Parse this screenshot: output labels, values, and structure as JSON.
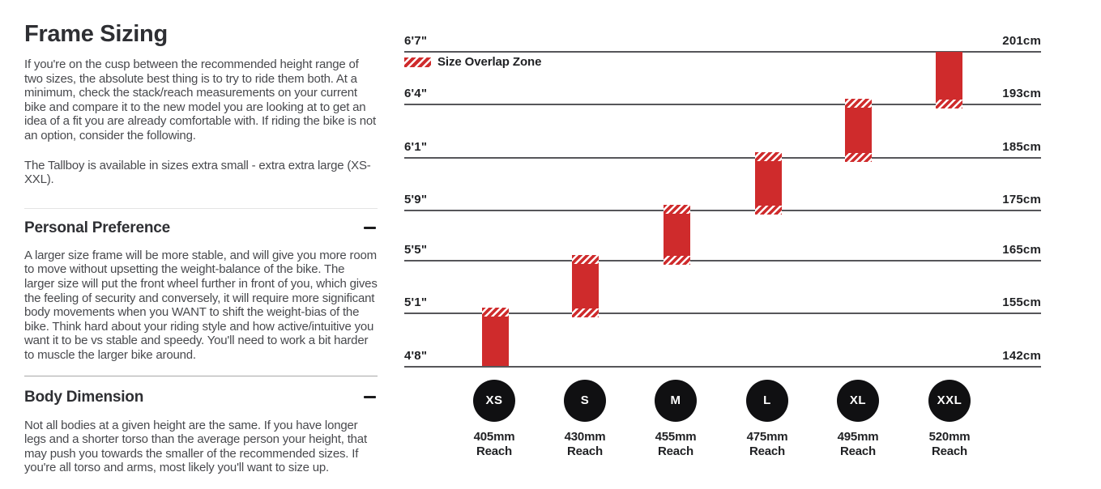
{
  "colors": {
    "red": "#cf2b2c",
    "circle_black": "#101012",
    "line_gray": "#56565a"
  },
  "header": {
    "title": "Frame Sizing"
  },
  "intro": {
    "p1": "If you're on the cusp between the recommended height range of two sizes, the absolute best thing is to try to ride them both. At a minimum, check the stack/reach measurements on your current bike and compare it to the new model you are looking at to get an idea of a fit you are already comfortable with. If riding the bike is not an option, consider the following.",
    "p2": "The Tallboy is available in sizes extra small - extra extra large (XS-XXL)."
  },
  "sections": [
    {
      "title": "Personal Preference",
      "toggle_state": "expanded",
      "body": "A larger size frame will be more stable, and will give you more room to move without upsetting the weight-balance of the bike. The larger size will put the front wheel further in front of you, which gives the feeling of security and conversely, it will require more significant body movements when you WANT to shift the weight-bias of the bike. Think hard about your riding style and how active/intuitive you want it to be vs stable and speedy. You'll need to work a bit harder to muscle the larger bike around."
    },
    {
      "title": "Body Dimension",
      "toggle_state": "expanded",
      "body": "Not all bodies at a given height are the same. If you have longer legs and a shorter torso than the average person your height, that may push you towards the smaller of the recommended sizes. If you're all torso and arms, most likely you'll want to size up."
    }
  ],
  "chart_data": {
    "type": "bar",
    "subtype": "vertical-range-size-chart",
    "title": "Frame Sizing",
    "legend": "Size Overlap Zone",
    "grid": "horizontal-lines",
    "height_levels": [
      {
        "ft": "6'7\"",
        "cm": "201cm"
      },
      {
        "ft": "6'4\"",
        "cm": "193cm"
      },
      {
        "ft": "6'1\"",
        "cm": "185cm"
      },
      {
        "ft": "5'9\"",
        "cm": "175cm"
      },
      {
        "ft": "5'5\"",
        "cm": "165cm"
      },
      {
        "ft": "5'1\"",
        "cm": "155cm"
      },
      {
        "ft": "4'8\"",
        "cm": "142cm"
      }
    ],
    "sizes": [
      {
        "label": "XS",
        "reach": "405mm",
        "reach_caption": "Reach",
        "range_ft": [
          "4'8\"",
          "5'1\""
        ],
        "range_cm": [
          142,
          155
        ],
        "overlap_top": true,
        "overlap_bottom": false
      },
      {
        "label": "S",
        "reach": "430mm",
        "reach_caption": "Reach",
        "range_ft": [
          "5'1\"",
          "5'5\""
        ],
        "range_cm": [
          155,
          165
        ],
        "overlap_top": true,
        "overlap_bottom": true
      },
      {
        "label": "M",
        "reach": "455mm",
        "reach_caption": "Reach",
        "range_ft": [
          "5'5\"",
          "5'9\""
        ],
        "range_cm": [
          165,
          175
        ],
        "overlap_top": true,
        "overlap_bottom": true
      },
      {
        "label": "L",
        "reach": "475mm",
        "reach_caption": "Reach",
        "range_ft": [
          "5'9\"",
          "6'1\""
        ],
        "range_cm": [
          175,
          185
        ],
        "overlap_top": true,
        "overlap_bottom": true
      },
      {
        "label": "XL",
        "reach": "495mm",
        "reach_caption": "Reach",
        "range_ft": [
          "6'1\"",
          "6'4\""
        ],
        "range_cm": [
          185,
          193
        ],
        "overlap_top": true,
        "overlap_bottom": true
      },
      {
        "label": "XXL",
        "reach": "520mm",
        "reach_caption": "Reach",
        "range_ft": [
          "6'4\"",
          "6'7\""
        ],
        "range_cm": [
          193,
          201
        ],
        "overlap_top": false,
        "overlap_bottom": true
      }
    ]
  }
}
